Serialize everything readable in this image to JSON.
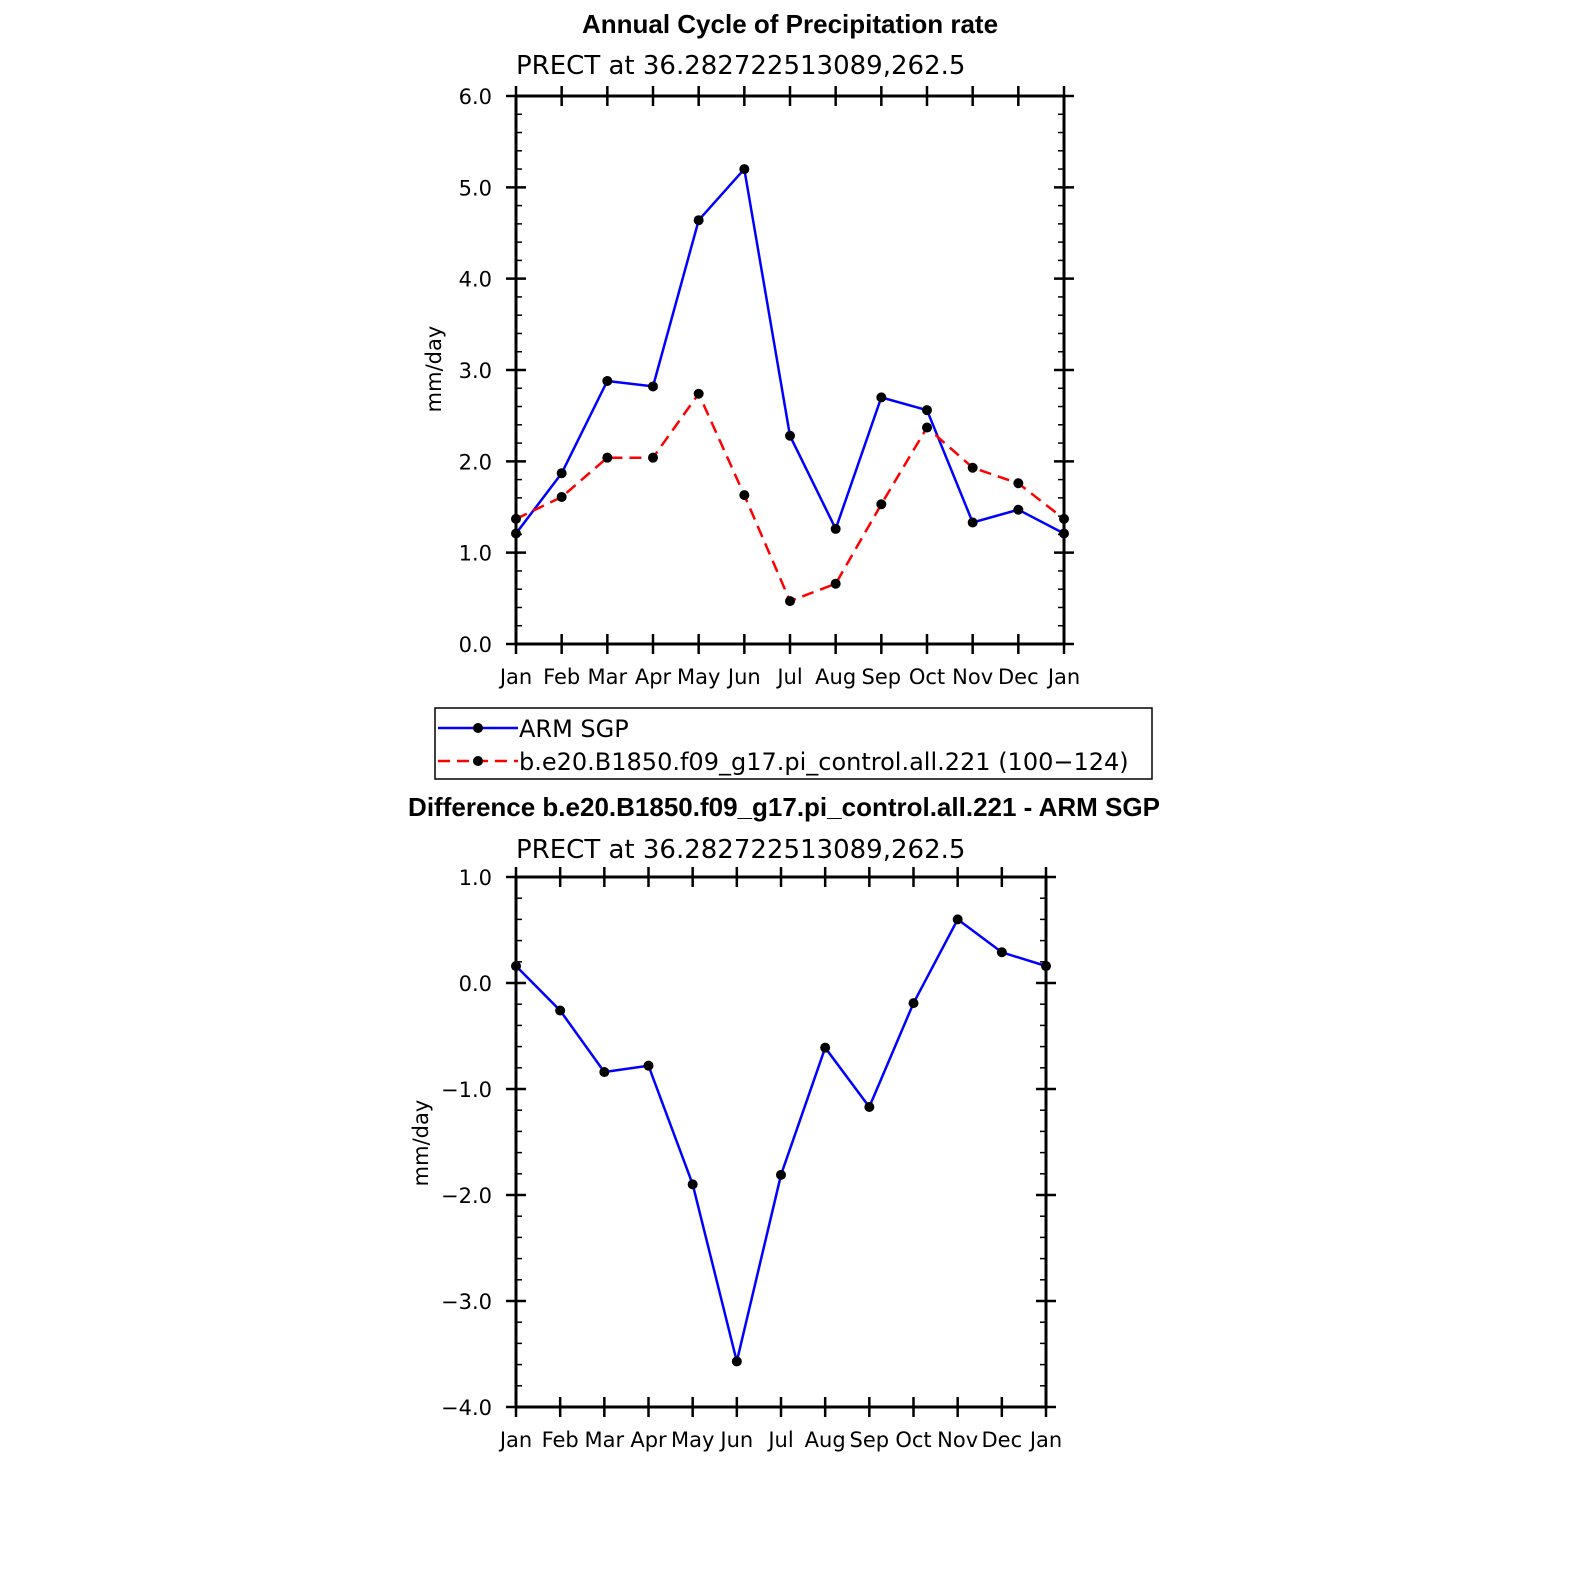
{
  "chart_data": [
    {
      "type": "line",
      "title": "Annual Cycle of Precipitation rate",
      "subtitle": "PRECT at 36.282722513089,262.5",
      "ylabel": "mm/day",
      "xlabel": "",
      "categories": [
        "Jan",
        "Feb",
        "Mar",
        "Apr",
        "May",
        "Jun",
        "Jul",
        "Aug",
        "Sep",
        "Oct",
        "Nov",
        "Dec",
        "Jan"
      ],
      "ylim": [
        0.0,
        6.0
      ],
      "yticks": [
        "0.0",
        "1.0",
        "2.0",
        "3.0",
        "4.0",
        "5.0",
        "6.0"
      ],
      "grid": false,
      "legend_position": "bottom",
      "series": [
        {
          "name": "ARM SGP",
          "color": "#0000ff",
          "style": "solid",
          "values": [
            1.21,
            1.87,
            2.88,
            2.82,
            4.64,
            5.2,
            2.28,
            1.26,
            2.7,
            2.56,
            1.33,
            1.47,
            1.21
          ]
        },
        {
          "name": "b.e20.B1850.f09_g17.pi_control.all.221 (100−124)",
          "color": "#ff0000",
          "style": "dashed",
          "values": [
            1.37,
            1.61,
            2.04,
            2.04,
            2.74,
            1.63,
            0.47,
            0.66,
            1.53,
            2.37,
            1.93,
            1.76,
            1.37
          ]
        }
      ]
    },
    {
      "type": "line",
      "title": "Difference b.e20.B1850.f09_g17.pi_control.all.221 - ARM SGP",
      "subtitle": "PRECT at 36.282722513089,262.5",
      "ylabel": "mm/day",
      "xlabel": "",
      "categories": [
        "Jan",
        "Feb",
        "Mar",
        "Apr",
        "May",
        "Jun",
        "Jul",
        "Aug",
        "Sep",
        "Oct",
        "Nov",
        "Dec",
        "Jan"
      ],
      "ylim": [
        -4.0,
        1.0
      ],
      "yticks": [
        "−4.0",
        "−3.0",
        "−2.0",
        "−1.0",
        "0.0",
        "1.0"
      ],
      "grid": false,
      "series": [
        {
          "color": "#0000ff",
          "style": "solid",
          "values": [
            0.16,
            -0.26,
            -0.84,
            -0.78,
            -1.9,
            -3.57,
            -1.81,
            -0.61,
            -1.17,
            -0.19,
            0.6,
            0.29,
            0.16
          ]
        }
      ]
    }
  ]
}
